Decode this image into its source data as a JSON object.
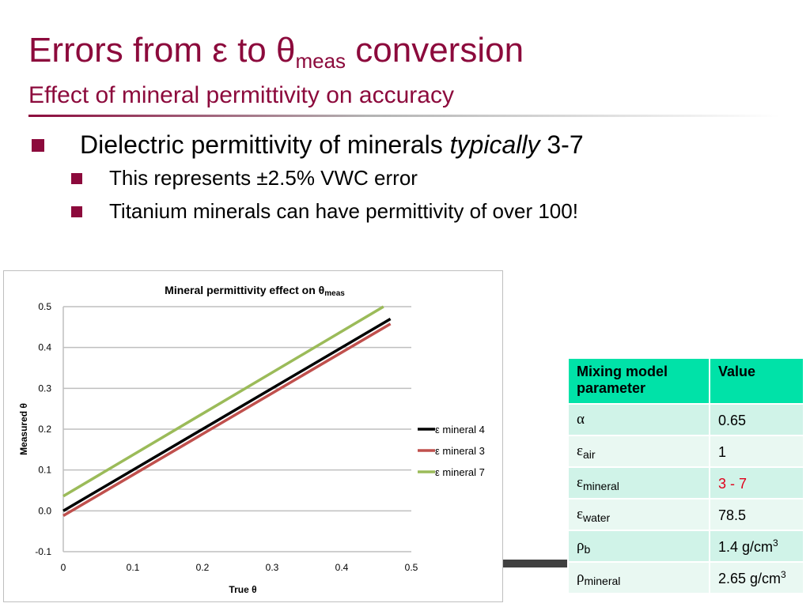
{
  "slide": {
    "title_main": "Errors from ε to θ",
    "title_sub": "meas",
    "title_tail": " conversion",
    "subtitle": "Effect of mineral permittivity on accuracy",
    "bullet1_pre": "Dielectric permittivity of minerals ",
    "bullet1_em": "typically",
    "bullet1_post": " 3-7",
    "bullet2": "This represents ±2.5% VWC error",
    "bullet3": "Titanium minerals can have permittivity of over 100!"
  },
  "table": {
    "header": [
      "Mixing model parameter",
      "Value"
    ],
    "rows": [
      {
        "symbol": "α",
        "sub": "",
        "value": "0.65",
        "value_sup": "",
        "value_color": "#000000"
      },
      {
        "symbol": "ε",
        "sub": "air",
        "value": "1",
        "value_sup": "",
        "value_color": "#000000"
      },
      {
        "symbol": "ε",
        "sub": "mineral",
        "value": "3 - 7",
        "value_sup": "",
        "value_color": "#e0001b"
      },
      {
        "symbol": "ε",
        "sub": "water",
        "value": "78.5",
        "value_sup": "",
        "value_color": "#000000"
      },
      {
        "symbol": "ρ",
        "sub": "b",
        "value": "1.4 g/cm",
        "value_sup": "3",
        "value_color": "#000000"
      },
      {
        "symbol": "ρ",
        "sub": "mineral",
        "value": "2.65 g/cm",
        "value_sup": "3",
        "value_color": "#000000"
      }
    ]
  },
  "chart_data": {
    "type": "line",
    "title": "Mineral permittivity effect on θ",
    "title_sub": "meas",
    "xlabel": "True θ",
    "ylabel": "Measured θ",
    "xlim": [
      0,
      0.5
    ],
    "ylim": [
      -0.1,
      0.5
    ],
    "xticks": [
      "0",
      "0.1",
      "0.2",
      "0.3",
      "0.4",
      "0.5"
    ],
    "yticks": [
      "0.5",
      "0.4",
      "0.3",
      "0.2",
      "0.1",
      "0.0",
      "-0.1"
    ],
    "grid": true,
    "legend_position": "right",
    "series": [
      {
        "name": "ε mineral 4",
        "color": "#000000",
        "x": [
          0,
          0.47
        ],
        "y": [
          0.0,
          0.47
        ]
      },
      {
        "name": "ε mineral 3",
        "color": "#c0504d",
        "x": [
          0,
          0.47
        ],
        "y": [
          -0.012,
          0.458
        ]
      },
      {
        "name": "ε mineral 7",
        "color": "#9bbb59",
        "x": [
          0,
          0.46
        ],
        "y": [
          0.036,
          0.5
        ]
      }
    ]
  },
  "colors": {
    "accent": "#8c0a3c",
    "table_header": "#00e2a8",
    "highlight_value": "#e0001b"
  }
}
